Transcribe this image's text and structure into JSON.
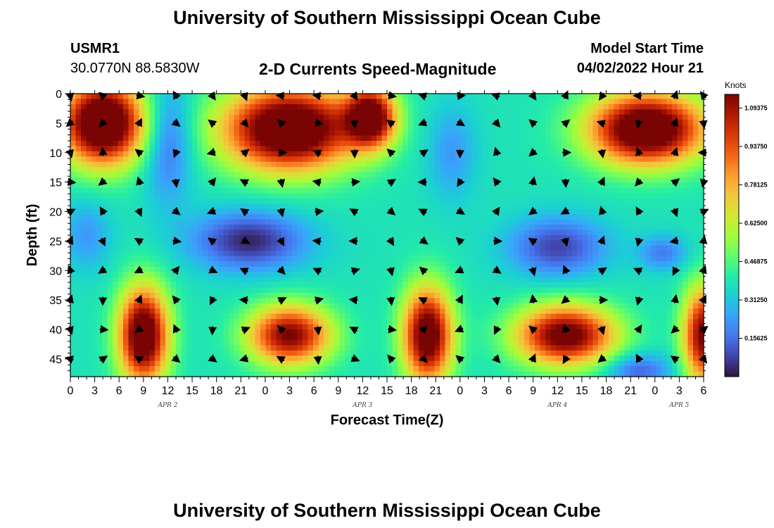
{
  "figure": {
    "title": "University of Southern Mississippi Ocean Cube",
    "station_name": "USMR1",
    "station_coords": "30.0770N  88.5830W",
    "subtitle": "2-D Currents Speed-Magnitude",
    "model_start_label": "Model Start Time",
    "model_start_value": "04/02/2022 Hour 21",
    "footer_title": "University of Southern Mississippi Ocean Cube"
  },
  "chart_data": {
    "type": "heatmap",
    "xlabel": "Forecast Time(Z)",
    "ylabel": "Depth (ft)",
    "x_tick_labels": [
      "0",
      "3",
      "6",
      "9",
      "12",
      "15",
      "18",
      "21",
      "0",
      "3",
      "6",
      "9",
      "12",
      "15",
      "18",
      "21",
      "0",
      "3",
      "6",
      "9",
      "12",
      "15",
      "18",
      "21",
      "0",
      "3",
      "6"
    ],
    "x_range": [
      0,
      78
    ],
    "date_labels": [
      {
        "label": "APR 2",
        "hour": 12
      },
      {
        "label": "APR 3",
        "hour": 36
      },
      {
        "label": "APR 4",
        "hour": 60
      },
      {
        "label": "APR 5",
        "hour": 75
      }
    ],
    "y_ticks": [
      0,
      5,
      10,
      15,
      20,
      25,
      30,
      35,
      40,
      45
    ],
    "y_range": [
      0,
      48
    ],
    "colorbar": {
      "unit": "Knots",
      "range": [
        0,
        1.15
      ],
      "tick_labels": [
        "1.09375",
        "0.93750",
        "0.78125",
        "0.62500",
        "0.46875",
        "0.31250",
        "0.15625"
      ],
      "colors": [
        "#30123b",
        "#4145ab",
        "#4675ed",
        "#39a2fc",
        "#1bcfd4",
        "#24eca6",
        "#61fc6c",
        "#a4fc3b",
        "#d1e834",
        "#f3c63a",
        "#fe9b2d",
        "#f36315",
        "#d93806",
        "#b11901",
        "#7a0403"
      ]
    },
    "speed_blobs": [
      {
        "t": 4,
        "d": 5,
        "v": 1.05,
        "st": 5,
        "sd": 7
      },
      {
        "t": 27,
        "d": 6,
        "v": 1.02,
        "st": 8,
        "sd": 7
      },
      {
        "t": 37,
        "d": 4,
        "v": 0.85,
        "st": 3,
        "sd": 5
      },
      {
        "t": 71,
        "d": 6,
        "v": 1.0,
        "st": 7,
        "sd": 6
      },
      {
        "t": 9,
        "d": 41,
        "v": 0.95,
        "st": 3,
        "sd": 8
      },
      {
        "t": 27,
        "d": 41,
        "v": 0.78,
        "st": 5,
        "sd": 5
      },
      {
        "t": 44,
        "d": 41,
        "v": 0.9,
        "st": 3,
        "sd": 8
      },
      {
        "t": 61,
        "d": 41,
        "v": 0.85,
        "st": 6,
        "sd": 5
      },
      {
        "t": 78,
        "d": 41,
        "v": 0.8,
        "st": 2.5,
        "sd": 8
      },
      {
        "t": 22,
        "d": 25,
        "v": -0.35,
        "st": 7,
        "sd": 5
      },
      {
        "t": 60,
        "d": 26,
        "v": -0.3,
        "st": 6,
        "sd": 5
      },
      {
        "t": 73,
        "d": 27,
        "v": -0.2,
        "st": 3,
        "sd": 3
      },
      {
        "t": 12,
        "d": 8,
        "v": -0.25,
        "st": 3,
        "sd": 10
      },
      {
        "t": 47,
        "d": 10,
        "v": -0.15,
        "st": 3,
        "sd": 8
      },
      {
        "t": 2,
        "d": 24,
        "v": -0.15,
        "st": 3,
        "sd": 6
      },
      {
        "t": 70,
        "d": 47,
        "v": -0.25,
        "st": 4,
        "sd": 3
      }
    ],
    "vector_times": [
      0,
      4,
      8.5,
      13,
      17.5,
      21.5,
      26,
      30.5,
      35,
      39.5,
      43.5,
      48,
      52.5,
      57,
      61,
      65.5,
      70,
      74.5,
      78
    ],
    "vector_depths": [
      0,
      5,
      10,
      15,
      20,
      25,
      30,
      35,
      40,
      45
    ]
  }
}
